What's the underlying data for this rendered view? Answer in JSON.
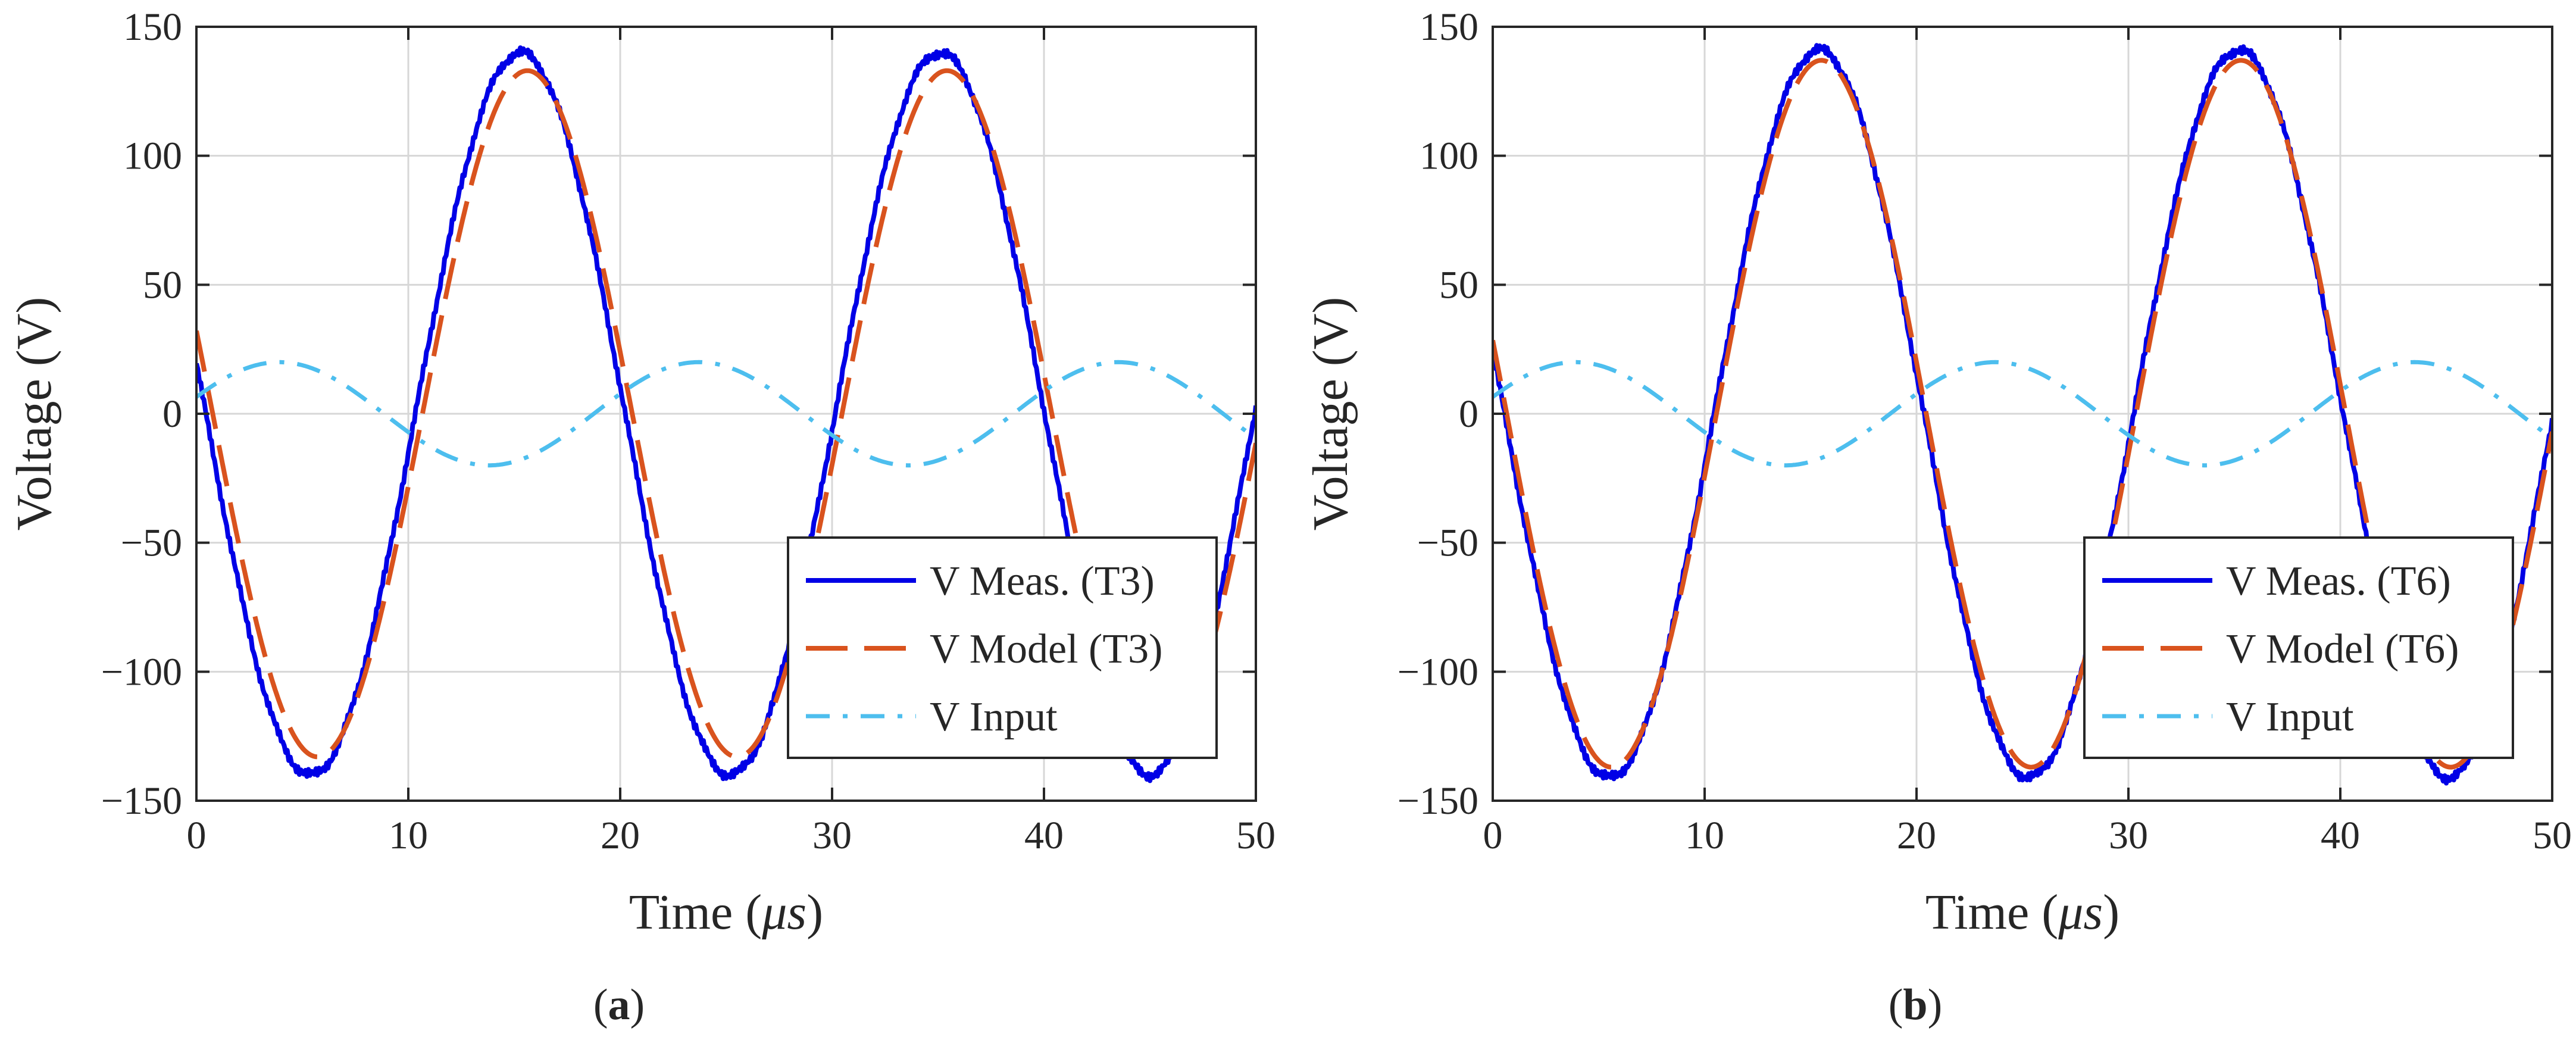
{
  "chart_data": [
    {
      "type": "line",
      "panel_label_prefix": "(",
      "panel_label_letter": "a",
      "panel_label_suffix": ")",
      "xlabel_prefix": "Time (",
      "xlabel_unit": "μs",
      "xlabel_suffix": ")",
      "ylabel": "Voltage (V)",
      "xlim": [
        0,
        50
      ],
      "ylim": [
        -150,
        150
      ],
      "xticks": [
        0,
        10,
        20,
        30,
        40,
        50
      ],
      "yticks": [
        150,
        100,
        50,
        0,
        -50,
        -100,
        -150
      ],
      "ytick_labels": [
        "150",
        "100",
        "50",
        "0",
        "−50",
        "−100",
        "−150"
      ],
      "grid": true,
      "legend_location": "bottom-right",
      "series": [
        {
          "name": "V Meas. (T3)",
          "style": "solid",
          "color": "#0000e6",
          "amplitude": 140,
          "period": 19.8,
          "phase_deg": 172,
          "noise": true
        },
        {
          "name": "V Model (T3)",
          "style": "dashed",
          "color": "#d9531e",
          "amplitude": 133,
          "period": 19.8,
          "phase_deg": 166
        },
        {
          "name": "V Input",
          "style": "dashdot",
          "color": "#4dbeee",
          "amplitude": 20,
          "period": 19.8,
          "phase_deg": 19
        }
      ]
    },
    {
      "type": "line",
      "panel_label_prefix": "(",
      "panel_label_letter": "b",
      "panel_label_suffix": ")",
      "xlabel_prefix": "Time (",
      "xlabel_unit": "μs",
      "xlabel_suffix": ")",
      "ylabel": "Voltage (V)",
      "xlim": [
        0,
        50
      ],
      "ylim": [
        -150,
        150
      ],
      "xticks": [
        0,
        10,
        20,
        30,
        40,
        50
      ],
      "yticks": [
        150,
        100,
        50,
        0,
        -50,
        -100,
        -150
      ],
      "ytick_labels": [
        "150",
        "100",
        "50",
        "0",
        "−50",
        "−100",
        "−150"
      ],
      "grid": true,
      "legend_location": "bottom-right",
      "series": [
        {
          "name": "V Meas. (T6)",
          "style": "solid",
          "color": "#0000e6",
          "amplitude": 141,
          "period": 19.8,
          "phase_deg": 170,
          "noise": true
        },
        {
          "name": "V Model (T6)",
          "style": "dashed",
          "color": "#d9531e",
          "amplitude": 137,
          "period": 19.8,
          "phase_deg": 168
        },
        {
          "name": "V Input",
          "style": "dashdot",
          "color": "#4dbeee",
          "amplitude": 20,
          "period": 19.8,
          "phase_deg": 19
        }
      ]
    }
  ]
}
